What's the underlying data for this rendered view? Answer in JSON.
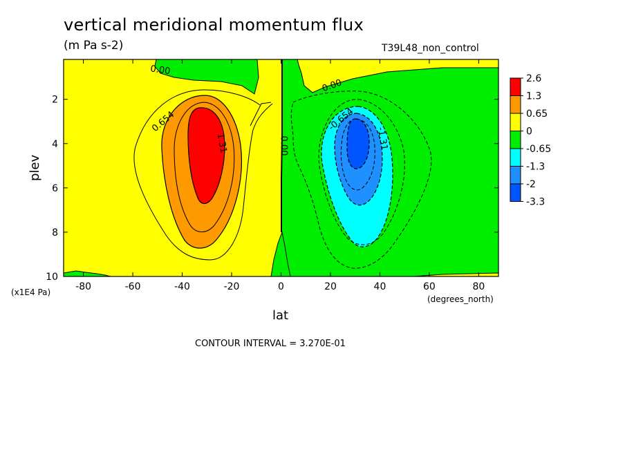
{
  "header": {
    "title": "vertical meridional momentum flux",
    "units": "(m Pa s-2)",
    "run": "T39L48_non_control"
  },
  "footer": {
    "contour_interval": "CONTOUR INTERVAL = 3.270E-01"
  },
  "chart_data": {
    "type": "heatmap",
    "xlabel": "lat",
    "ylabel": "plev",
    "x_units": "(degrees_north)",
    "y_units": "(x1E4 Pa)",
    "xlim": [
      -88,
      88
    ],
    "ylim": [
      10,
      0.2
    ],
    "x_ticks": [
      -80,
      -60,
      -40,
      -20,
      0,
      20,
      40,
      60,
      80
    ],
    "x_tick_labels": [
      "-80",
      "-60",
      "-40",
      "-20",
      "0",
      "20",
      "40",
      "60",
      "80"
    ],
    "y_ticks": [
      2,
      4,
      6,
      8,
      10
    ],
    "y_tick_labels": [
      "2",
      "4",
      "6",
      "8",
      "10"
    ],
    "legend_levels": [
      "2.6",
      "1.3",
      "0.65",
      "0",
      "-0.65",
      "-1.3",
      "-2",
      "-3.3"
    ],
    "legend_colors": [
      "#ff0000",
      "#ff9900",
      "#ffff00",
      "#00ee00",
      "#00ffff",
      "#1e90ff",
      "#0055ff"
    ],
    "legend_placement": "right",
    "contour_labels": [
      {
        "text": "0.00",
        "lat": -49,
        "plev": 0.8
      },
      {
        "text": "0.654",
        "lat": -47,
        "plev": 3.1
      },
      {
        "text": "1.31",
        "lat": -25,
        "plev": 4.0
      },
      {
        "text": "0.00",
        "lat": 0,
        "plev": 4.1
      },
      {
        "text": "0.00",
        "lat": 21,
        "plev": 1.5
      },
      {
        "text": "-0.654",
        "lat": 25,
        "plev": 3.0
      },
      {
        "text": "-1.31",
        "lat": 40,
        "plev": 3.8
      }
    ],
    "features": [
      {
        "name": "southern positive maximum",
        "lat": -32,
        "plev": 4.0,
        "value": 2.6
      },
      {
        "name": "northern negative minimum",
        "lat": 31,
        "plev": 3.8,
        "value": -3.3
      }
    ]
  }
}
